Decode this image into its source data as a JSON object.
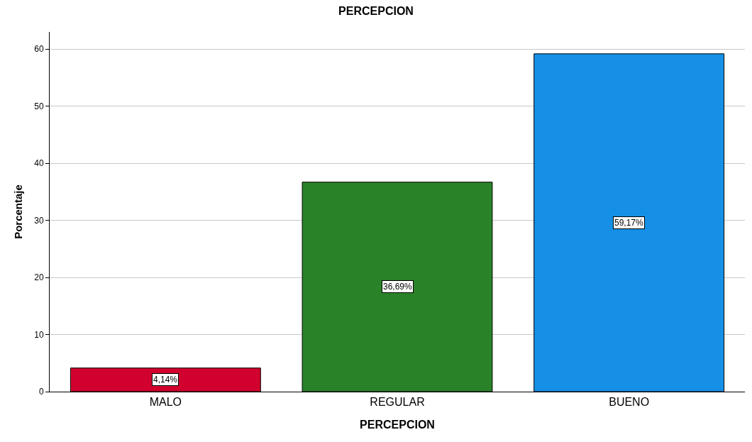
{
  "chart_data": {
    "type": "bar",
    "title": "PERCEPCION",
    "xlabel": "PERCEPCION",
    "ylabel": "Porcentaje",
    "categories": [
      "MALO",
      "REGULAR",
      "BUENO"
    ],
    "values": [
      4.14,
      36.69,
      59.17
    ],
    "value_labels": [
      "4,14%",
      "36,69%",
      "59,17%"
    ],
    "colors": [
      "#d2002e",
      "#2a8228",
      "#1590e6"
    ],
    "ylim": [
      0,
      63
    ],
    "yticks": [
      0,
      10,
      20,
      30,
      40,
      50,
      60
    ],
    "grid": "y",
    "legend": false
  }
}
